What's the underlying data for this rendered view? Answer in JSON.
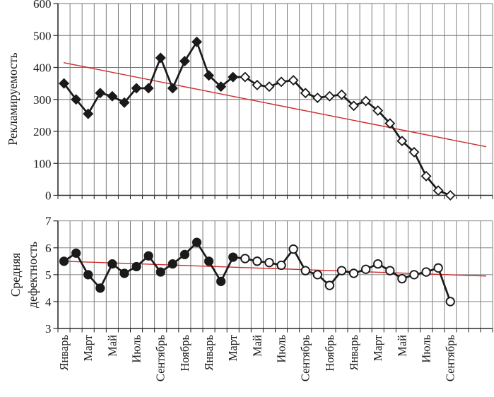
{
  "figure": {
    "background": "#ffffff",
    "series_color": "#1a1a1a",
    "trend_color": "#cf2b2b",
    "grid_color": "#757575",
    "axis_color": "#2b2b2b"
  },
  "x_axis": {
    "tick_labels": [
      "Январь",
      "Март",
      "Май",
      "Июль",
      "Сентябрь",
      "Ноябрь",
      "Январь",
      "Март",
      "Май",
      "Июль",
      "Сентябрь",
      "Ноябрь",
      "Январь",
      "Март",
      "Май",
      "Июль",
      "Сентябрь"
    ],
    "months_per_label": 2,
    "total_cells": 36,
    "plotted_months": 33
  },
  "chart_data": [
    {
      "type": "line",
      "title": "",
      "ylabel": "Рекламируемость",
      "ylim": [
        0,
        600
      ],
      "yticks": [
        0,
        100,
        200,
        300,
        400,
        500,
        600
      ],
      "grid": true,
      "legend": "none",
      "series": [
        {
          "name": "observed-filled",
          "marker": "filled-diamond",
          "start_month": 1,
          "values": [
            350,
            300,
            255,
            320,
            310,
            290,
            335,
            335,
            430,
            335,
            420,
            480,
            375,
            340,
            370
          ]
        },
        {
          "name": "observed-open",
          "marker": "open-diamond",
          "start_month": 16,
          "values": [
            370,
            345,
            340,
            355,
            360,
            320,
            305,
            310,
            315,
            280,
            295,
            265,
            225,
            170,
            135,
            60,
            15,
            0
          ]
        },
        {
          "name": "linear-trend",
          "marker": "none",
          "trend": {
            "start_value": 415,
            "end_value": 152
          }
        }
      ]
    },
    {
      "type": "line",
      "title": "",
      "ylabel": "Средняя дефектность",
      "ylabel_lines": [
        "Средняя",
        "дефектность"
      ],
      "ylim": [
        3,
        7
      ],
      "yticks": [
        3,
        4,
        5,
        6,
        7
      ],
      "grid": true,
      "legend": "none",
      "series": [
        {
          "name": "observed-filled",
          "marker": "filled-circle",
          "start_month": 1,
          "values": [
            5.5,
            5.8,
            5.0,
            4.5,
            5.4,
            5.05,
            5.3,
            5.7,
            5.1,
            5.4,
            5.75,
            6.2,
            5.5,
            4.75,
            5.65
          ]
        },
        {
          "name": "observed-open",
          "marker": "open-circle",
          "start_month": 16,
          "values": [
            5.6,
            5.5,
            5.45,
            5.35,
            5.95,
            5.15,
            5.0,
            4.6,
            5.15,
            5.05,
            5.2,
            5.4,
            5.15,
            4.85,
            5.0,
            5.1,
            5.25,
            4.0
          ]
        },
        {
          "name": "linear-trend",
          "marker": "none",
          "trend": {
            "start_value": 5.5,
            "end_value": 4.95
          }
        }
      ]
    }
  ]
}
